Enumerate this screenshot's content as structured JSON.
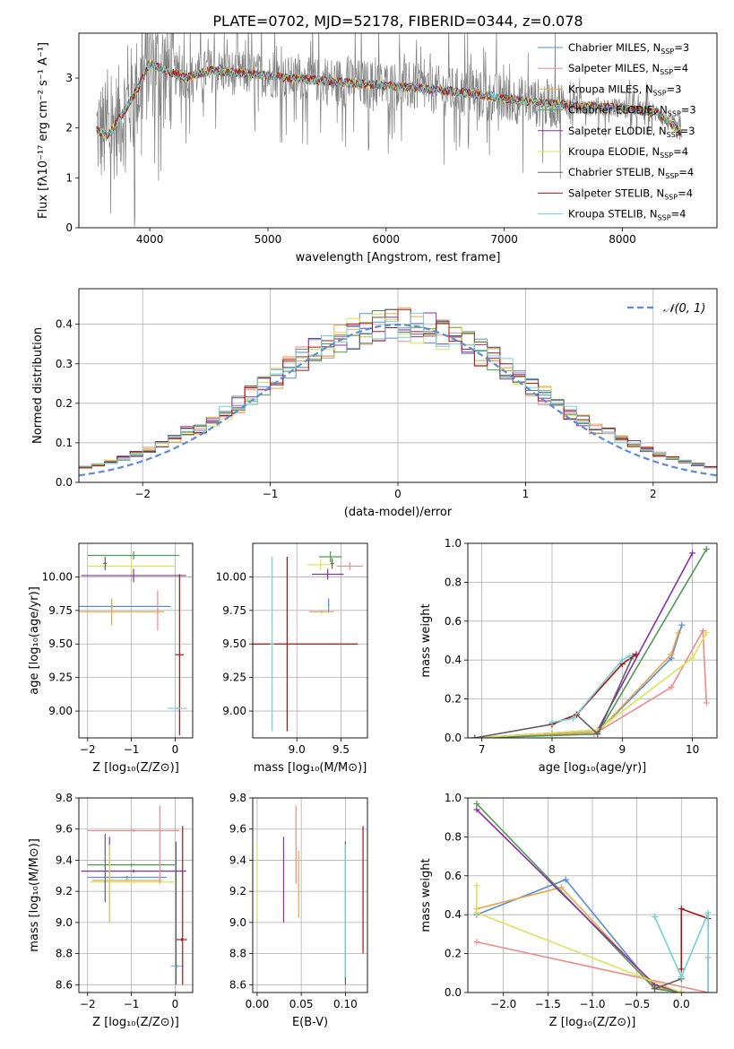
{
  "figure": {
    "title": "PLATE=0702, MJD=52178, FIBERID=0344, z=0.078"
  },
  "series_colors": {
    "Chabrier MILES": "#5b8bd9",
    "Salpeter MILES": "#f08a8a",
    "Kroupa MILES": "#e8a84a",
    "Chabrier ELODIE": "#4f9a55",
    "Salpeter ELODIE": "#8b2fa8",
    "Kroupa ELODIE": "#d8e455",
    "Chabrier STELIB": "#606060",
    "Salpeter STELIB": "#b01010",
    "Kroupa STELIB": "#70d0d8",
    "data": "#808080",
    "gaussian": "#5b8bd9"
  },
  "chart_data": [
    {
      "id": "spectrum",
      "type": "line",
      "title": "PLATE=0702, MJD=52178, FIBERID=0344, z=0.078",
      "xlabel": "wavelength [Angstrom, rest frame]",
      "ylabel": "Flux [fλ10⁻¹⁷ erg cm⁻² s⁻¹ A⁻¹]",
      "xlim": [
        3400,
        8800
      ],
      "ylim": [
        0,
        3.9
      ],
      "xticks": [
        "4000",
        "5000",
        "6000",
        "7000",
        "8000"
      ],
      "yticks": [
        "0",
        "1",
        "2",
        "3"
      ],
      "legend_position": "top-right",
      "legend": [
        "Chabrier MILES, N",
        "Salpeter MILES, N",
        "Kroupa MILES, N",
        "Chabrier ELODIE, N",
        "Salpeter ELODIE, N",
        "Kroupa ELODIE, N",
        "Chabrier STELIB, N",
        "Salpeter STELIB, N",
        "Kroupa STELIB, N"
      ],
      "legend_sub": "SSP",
      "legend_nssp": [
        "=3",
        "=4",
        "=3",
        "=3",
        "=3",
        "=4",
        "=4",
        "=4",
        "=4"
      ],
      "model_continuum": [
        [
          3550,
          1.95
        ],
        [
          3650,
          1.85
        ],
        [
          3800,
          2.4
        ],
        [
          3900,
          2.8
        ],
        [
          4000,
          3.3
        ],
        [
          4100,
          3.2
        ],
        [
          4300,
          3.0
        ],
        [
          4500,
          3.15
        ],
        [
          4800,
          3.1
        ],
        [
          5200,
          3.0
        ],
        [
          5600,
          2.92
        ],
        [
          6000,
          2.85
        ],
        [
          6500,
          2.75
        ],
        [
          7000,
          2.6
        ],
        [
          7300,
          2.5
        ],
        [
          7600,
          2.45
        ],
        [
          8000,
          2.4
        ],
        [
          8300,
          2.3
        ],
        [
          8500,
          1.9
        ]
      ]
    },
    {
      "id": "residuals",
      "type": "histogram",
      "xlabel": "(data-model)/error",
      "ylabel": "Normed distribution",
      "xlim": [
        -2.5,
        2.5
      ],
      "ylim": [
        0,
        0.49
      ],
      "xticks": [
        "−2",
        "−1",
        "0",
        "1",
        "2"
      ],
      "yticks": [
        "0.0",
        "0.1",
        "0.2",
        "0.3",
        "0.4"
      ],
      "legend_position": "top-right",
      "legend": [
        "𝒩(0, 1)"
      ],
      "bin_width": 0.1,
      "grid": true
    },
    {
      "id": "age-vs-Z",
      "type": "errorbar",
      "xlabel": "Z [log₁₀(Z/Z⊙)]",
      "ylabel": "age  [log₁₀(age/yr)]",
      "xlim": [
        -2.2,
        0.4
      ],
      "ylim": [
        8.8,
        10.25
      ],
      "xticks": [
        "−2",
        "−1",
        "0"
      ],
      "yticks": [
        "9.00",
        "9.25",
        "9.50",
        "9.75",
        "10.00"
      ],
      "points": [
        {
          "c": "Chabrier MILES",
          "x": -1.45,
          "xe": 1.35,
          "y": 9.78,
          "ye": 0.02
        },
        {
          "c": "Kroupa MILES",
          "x": -1.45,
          "xe": 1.2,
          "y": 9.74,
          "ye": 0.1
        },
        {
          "c": "Salpeter MILES",
          "x": -0.4,
          "xe": 0.02,
          "y": 9.75,
          "ye": 0.15
        },
        {
          "c": "Chabrier ELODIE",
          "x": -0.95,
          "xe": 1.05,
          "y": 10.16,
          "ye": 0.03
        },
        {
          "c": "Salpeter ELODIE",
          "x": -0.95,
          "xe": 1.2,
          "y": 10.01,
          "ye": 0.05
        },
        {
          "c": "Kroupa ELODIE",
          "x": -1.0,
          "xe": 1.0,
          "y": 10.08,
          "ye": 0.06
        },
        {
          "c": "Chabrier STELIB",
          "x": -1.6,
          "xe": 0.04,
          "y": 10.1,
          "ye": 0.05
        },
        {
          "c": "Salpeter STELIB",
          "x": 0.1,
          "xe": 0.1,
          "y": 9.42,
          "ye": 0.6
        },
        {
          "c": "Kroupa STELIB",
          "x": 0.05,
          "xe": 0.22,
          "y": 9.02,
          "ye": 0.01
        }
      ]
    },
    {
      "id": "age-vs-mass",
      "type": "errorbar",
      "xlabel": "mass [log₁₀(M/M⊙)]",
      "ylabel": "",
      "xlim": [
        8.5,
        9.8
      ],
      "ylim": [
        8.8,
        10.25
      ],
      "xticks": [
        "9.0",
        "9.5"
      ],
      "yticks": [
        "9.00",
        "9.25",
        "9.50",
        "9.75",
        "10.00"
      ],
      "points": [
        {
          "c": "Chabrier MILES",
          "x": 9.36,
          "xe": 0.01,
          "y": 9.79,
          "ye": 0.05
        },
        {
          "c": "Kroupa MILES",
          "x": 9.28,
          "xe": 0.14,
          "y": 9.74,
          "ye": 0.01
        },
        {
          "c": "Salpeter MILES",
          "x": 9.6,
          "xe": 0.15,
          "y": 10.08,
          "ye": 0.03
        },
        {
          "c": "Chabrier ELODIE",
          "x": 9.38,
          "xe": 0.13,
          "y": 10.15,
          "ye": 0.04
        },
        {
          "c": "Salpeter ELODIE",
          "x": 9.35,
          "xe": 0.18,
          "y": 10.02,
          "ye": 0.04
        },
        {
          "c": "Kroupa ELODIE",
          "x": 9.27,
          "xe": 0.15,
          "y": 10.09,
          "ye": 0.04
        },
        {
          "c": "Chabrier STELIB",
          "x": 9.4,
          "xe": 0.02,
          "y": 10.1,
          "ye": 0.04
        },
        {
          "c": "Salpeter STELIB",
          "x": 8.89,
          "xe": 0.8,
          "y": 9.5,
          "ye": 0.65
        },
        {
          "c": "Kroupa STELIB",
          "x": 8.72,
          "xe": 0.02,
          "y": 9.5,
          "ye": 0.65
        }
      ]
    },
    {
      "id": "mass-weight-vs-age",
      "type": "line",
      "xlabel": "age  [log₁₀(age/yr)]",
      "ylabel": "mass weight",
      "xlim": [
        6.8,
        10.35
      ],
      "ylim": [
        0,
        1.0
      ],
      "xticks": [
        "7",
        "8",
        "9",
        "10"
      ],
      "yticks": [
        "0.0",
        "0.2",
        "0.4",
        "0.6",
        "0.8",
        "1.0"
      ],
      "grid": true,
      "series": [
        {
          "name": "Chabrier MILES",
          "points": [
            [
              6.9,
              0.0
            ],
            [
              8.0,
              0.02
            ],
            [
              8.65,
              0.03
            ],
            [
              9.7,
              0.41
            ],
            [
              9.85,
              0.58
            ]
          ]
        },
        {
          "name": "Kroupa MILES",
          "points": [
            [
              6.9,
              0.0
            ],
            [
              8.0,
              0.02
            ],
            [
              8.65,
              0.03
            ],
            [
              9.7,
              0.43
            ],
            [
              9.8,
              0.54
            ]
          ]
        },
        {
          "name": "Salpeter MILES",
          "points": [
            [
              6.9,
              0.0
            ],
            [
              8.6,
              0.02
            ],
            [
              9.7,
              0.26
            ],
            [
              10.15,
              0.55
            ],
            [
              10.2,
              0.18
            ]
          ]
        },
        {
          "name": "Chabrier ELODIE",
          "points": [
            [
              6.9,
              0.0
            ],
            [
              8.65,
              0.02
            ],
            [
              10.2,
              0.97
            ]
          ]
        },
        {
          "name": "Salpeter ELODIE",
          "points": [
            [
              6.9,
              0.0
            ],
            [
              8.65,
              0.04
            ],
            [
              10.0,
              0.95
            ]
          ]
        },
        {
          "name": "Kroupa ELODIE",
          "points": [
            [
              6.9,
              0.0
            ],
            [
              8.65,
              0.04
            ],
            [
              10.0,
              0.41
            ],
            [
              10.2,
              0.54
            ]
          ]
        },
        {
          "name": "Chabrier STELIB",
          "points": [
            [
              6.9,
              0.0
            ],
            [
              8.0,
              0.07
            ],
            [
              8.35,
              0.12
            ],
            [
              8.65,
              0.02
            ],
            [
              9.15,
              0.42
            ]
          ]
        },
        {
          "name": "Salpeter STELIB",
          "points": [
            [
              8.0,
              0.07
            ],
            [
              8.35,
              0.12
            ],
            [
              9.0,
              0.38
            ],
            [
              9.2,
              0.43
            ]
          ]
        },
        {
          "name": "Kroupa STELIB",
          "points": [
            [
              8.0,
              0.08
            ],
            [
              8.3,
              0.1
            ],
            [
              9.0,
              0.4
            ],
            [
              9.1,
              0.42
            ]
          ]
        }
      ]
    },
    {
      "id": "mass-vs-Z",
      "type": "errorbar",
      "xlabel": "Z [log₁₀(Z/Z⊙)]",
      "ylabel": "mass [log₁₀(M/M⊙)]",
      "xlim": [
        -2.2,
        0.4
      ],
      "ylim": [
        8.55,
        9.8
      ],
      "xticks": [
        "−2",
        "−1",
        "0"
      ],
      "yticks": [
        "8.6",
        "8.8",
        "9.0",
        "9.2",
        "9.4",
        "9.6",
        "9.8"
      ],
      "points": [
        {
          "c": "Chabrier MILES",
          "x": -1.1,
          "xe": 0.9,
          "y": 9.29,
          "ye": 0.01
        },
        {
          "c": "Kroupa MILES",
          "x": -1.1,
          "xe": 0.8,
          "y": 9.27,
          "ye": 0.01
        },
        {
          "c": "Salpeter MILES",
          "x": -0.95,
          "xe": 1.05,
          "y": 9.59,
          "ye": 0.01
        },
        {
          "c": "Chabrier ELODIE",
          "x": -1.0,
          "xe": 1.0,
          "y": 9.37,
          "ye": 0.01
        },
        {
          "c": "Salpeter ELODIE",
          "x": -0.95,
          "xe": 1.2,
          "y": 9.33,
          "ye": 0.01
        },
        {
          "c": "Kroupa ELODIE",
          "x": -0.95,
          "xe": 1.0,
          "y": 9.26,
          "ye": 0.01
        },
        {
          "c": "Chabrier STELIB",
          "x": -1.6,
          "xe": 0.01,
          "y": 9.35,
          "ye": 0.22
        },
        {
          "c": "Salpeter STELIB",
          "x": 0.15,
          "xe": 0.12,
          "y": 8.89,
          "ye": 0.01
        },
        {
          "c": "Kroupa STELIB",
          "x": 0.05,
          "xe": 0.15,
          "y": 8.72,
          "ye": 0.01
        }
      ],
      "extra_vertical": [
        {
          "c": "Salpeter ELODIE",
          "x": -1.5,
          "y0": 9.0,
          "y1": 9.55
        },
        {
          "c": "Kroupa ELODIE",
          "x": -1.5,
          "y0": 9.0,
          "y1": 9.5
        },
        {
          "c": "Salpeter MILES",
          "x": -0.35,
          "y0": 9.25,
          "y1": 9.75
        },
        {
          "c": "Chabrier STELIB",
          "x": 0.02,
          "y0": 8.6,
          "y1": 9.52
        },
        {
          "c": "Salpeter STELIB",
          "x": 0.17,
          "y0": 8.6,
          "y1": 9.62
        }
      ]
    },
    {
      "id": "mass-vs-EBV",
      "type": "errorbar",
      "xlabel": "E(B-V)",
      "ylabel": "",
      "xlim": [
        -0.005,
        0.125
      ],
      "ylim": [
        8.55,
        9.8
      ],
      "xticks": [
        "0.00",
        "0.05",
        "0.10"
      ],
      "yticks": [
        "8.6",
        "8.8",
        "9.0",
        "9.2",
        "9.4",
        "9.6",
        "9.8"
      ],
      "bars": [
        {
          "c": "Kroupa ELODIE",
          "x": 0.0,
          "y0": 9.0,
          "y1": 9.52
        },
        {
          "c": "Salpeter ELODIE",
          "x": 0.03,
          "y0": 9.0,
          "y1": 9.55
        },
        {
          "c": "Salpeter MILES",
          "x": 0.044,
          "y0": 9.25,
          "y1": 9.75
        },
        {
          "c": "Kroupa MILES",
          "x": 0.047,
          "y0": 9.03,
          "y1": 9.46
        },
        {
          "c": "Chabrier STELIB",
          "x": 0.1,
          "y0": 8.6,
          "y1": 9.52
        },
        {
          "c": "Kroupa STELIB",
          "x": 0.1,
          "y0": 8.65,
          "y1": 9.5
        },
        {
          "c": "Salpeter STELIB",
          "x": 0.12,
          "y0": 8.8,
          "y1": 9.62
        }
      ]
    },
    {
      "id": "mass-weight-vs-Z",
      "type": "line",
      "xlabel": "Z [log₁₀(Z/Z⊙)]",
      "ylabel": "mass weight",
      "xlim": [
        -2.4,
        0.4
      ],
      "ylim": [
        0,
        1.0
      ],
      "xticks": [
        "−2.0",
        "−1.5",
        "−1.0",
        "−0.5",
        "0.0"
      ],
      "yticks": [
        "0.0",
        "0.2",
        "0.4",
        "0.6",
        "0.8",
        "1.0"
      ],
      "grid": true,
      "series": [
        {
          "name": "Chabrier MILES",
          "points": [
            [
              -2.3,
              0.4
            ],
            [
              -1.3,
              0.58
            ],
            [
              -0.3,
              0.02
            ],
            [
              0.0,
              0.0
            ]
          ]
        },
        {
          "name": "Kroupa MILES",
          "points": [
            [
              -2.3,
              0.43
            ],
            [
              -1.35,
              0.54
            ],
            [
              -0.3,
              0.03
            ],
            [
              0.0,
              0.0
            ]
          ]
        },
        {
          "name": "Salpeter MILES",
          "points": [
            [
              -2.3,
              0.26
            ],
            [
              0.3,
              0.0
            ],
            [
              0.3,
              0.18
            ]
          ]
        },
        {
          "name": "Chabrier ELODIE",
          "points": [
            [
              -2.3,
              0.97
            ],
            [
              -0.3,
              0.02
            ],
            [
              0.0,
              0.0
            ]
          ]
        },
        {
          "name": "Salpeter ELODIE",
          "points": [
            [
              -2.3,
              0.94
            ],
            [
              -0.3,
              0.04
            ],
            [
              0.0,
              0.0
            ]
          ]
        },
        {
          "name": "Kroupa ELODIE",
          "points": [
            [
              -2.3,
              0.55
            ],
            [
              -2.3,
              0.41
            ],
            [
              0.0,
              0.0
            ]
          ]
        },
        {
          "name": "Chabrier STELIB",
          "points": [
            [
              -0.3,
              0.02
            ],
            [
              0.0,
              0.07
            ]
          ]
        },
        {
          "name": "Salpeter STELIB",
          "points": [
            [
              0.0,
              0.12
            ],
            [
              0.0,
              0.43
            ],
            [
              0.3,
              0.38
            ]
          ]
        },
        {
          "name": "Kroupa STELIB",
          "points": [
            [
              -0.3,
              0.39
            ],
            [
              0.0,
              0.08
            ],
            [
              0.3,
              0.41
            ],
            [
              0.3,
              0.0
            ]
          ]
        }
      ]
    }
  ]
}
